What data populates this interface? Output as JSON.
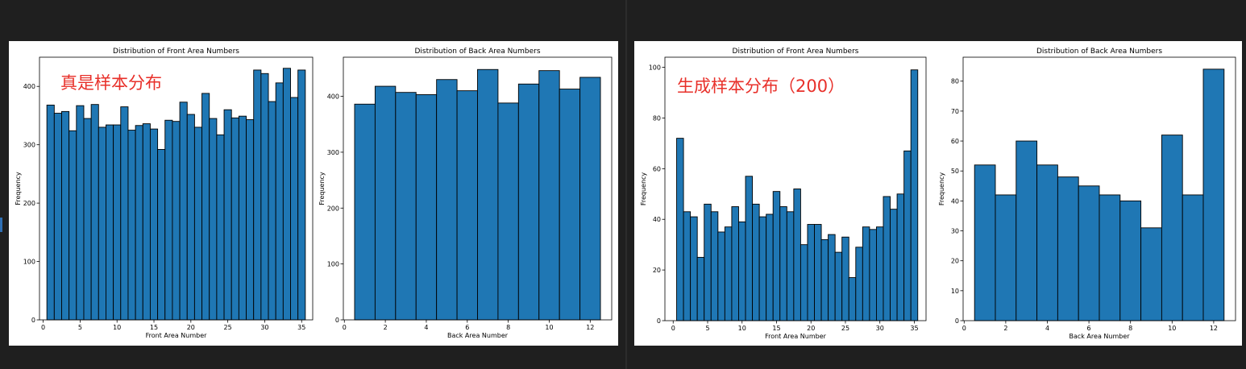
{
  "colors": {
    "bar_fill": "#1f77b4",
    "bar_edge": "#000000",
    "annotation": "#e8302a"
  },
  "annotations": {
    "left": "真是样本分布",
    "right": "生成样本分布（200）"
  },
  "chart_data": [
    {
      "type": "bar",
      "title": "Distribution of Front Area Numbers",
      "xlabel": "Front Area Number",
      "ylabel": "Frequency",
      "x": [
        1,
        2,
        3,
        4,
        5,
        6,
        7,
        8,
        9,
        10,
        11,
        12,
        13,
        14,
        15,
        16,
        17,
        18,
        19,
        20,
        21,
        22,
        23,
        24,
        25,
        26,
        27,
        28,
        29,
        30,
        31,
        32,
        33,
        34,
        35
      ],
      "values": [
        368,
        354,
        357,
        324,
        367,
        345,
        369,
        330,
        334,
        334,
        365,
        325,
        333,
        336,
        327,
        292,
        342,
        340,
        373,
        352,
        330,
        388,
        345,
        317,
        360,
        346,
        349,
        343,
        428,
        422,
        374,
        406,
        431,
        381,
        428
      ],
      "xlim": [
        -0.5,
        36.5
      ],
      "ylim": [
        0,
        450
      ],
      "xticks": [
        "0",
        "5",
        "10",
        "15",
        "20",
        "25",
        "30",
        "35"
      ],
      "yticks": [
        "0",
        "100",
        "200",
        "300",
        "400"
      ]
    },
    {
      "type": "bar",
      "title": "Distribution of Back Area Numbers",
      "xlabel": "Back Area Number",
      "ylabel": "Frequency",
      "x": [
        1,
        2,
        3,
        4,
        5,
        6,
        7,
        8,
        9,
        10,
        11,
        12
      ],
      "values": [
        386,
        418,
        407,
        403,
        430,
        410,
        448,
        388,
        422,
        446,
        413,
        434
      ],
      "xlim": [
        -0.05,
        13.05
      ],
      "ylim": [
        0,
        470
      ],
      "xticks": [
        "0",
        "2",
        "4",
        "6",
        "8",
        "10",
        "12"
      ],
      "yticks": [
        "0",
        "100",
        "200",
        "300",
        "400"
      ]
    },
    {
      "type": "bar",
      "title": "Distribution of Front Area Numbers",
      "xlabel": "Front Area Number",
      "ylabel": "Frequency",
      "x": [
        1,
        2,
        3,
        4,
        5,
        6,
        7,
        8,
        9,
        10,
        11,
        12,
        13,
        14,
        15,
        16,
        17,
        18,
        19,
        20,
        21,
        22,
        23,
        24,
        25,
        26,
        27,
        28,
        29,
        30,
        31,
        32,
        33,
        34,
        35
      ],
      "values": [
        72,
        43,
        41,
        25,
        46,
        43,
        35,
        37,
        45,
        39,
        57,
        46,
        41,
        42,
        51,
        45,
        43,
        52,
        30,
        38,
        38,
        32,
        34,
        27,
        33,
        17,
        29,
        37,
        36,
        37,
        49,
        44,
        50,
        67,
        99
      ],
      "xlim": [
        -1.2,
        36.7
      ],
      "ylim": [
        0,
        104
      ],
      "xticks": [
        "0",
        "5",
        "10",
        "15",
        "20",
        "25",
        "30",
        "35"
      ],
      "yticks": [
        "0",
        "20",
        "40",
        "60",
        "80",
        "100"
      ]
    },
    {
      "type": "bar",
      "title": "Distribution of Back Area Numbers",
      "xlabel": "Back Area Number",
      "ylabel": "Frequency",
      "x": [
        1,
        2,
        3,
        4,
        5,
        6,
        7,
        8,
        9,
        10,
        11,
        12
      ],
      "values": [
        52,
        42,
        60,
        52,
        48,
        45,
        42,
        40,
        31,
        62,
        42,
        84
      ],
      "xlim": [
        -0.05,
        13.05
      ],
      "ylim": [
        0,
        88
      ],
      "xticks": [
        "0",
        "2",
        "4",
        "6",
        "8",
        "10",
        "12"
      ],
      "yticks": [
        "0",
        "10",
        "20",
        "30",
        "40",
        "50",
        "60",
        "70",
        "80"
      ]
    }
  ]
}
